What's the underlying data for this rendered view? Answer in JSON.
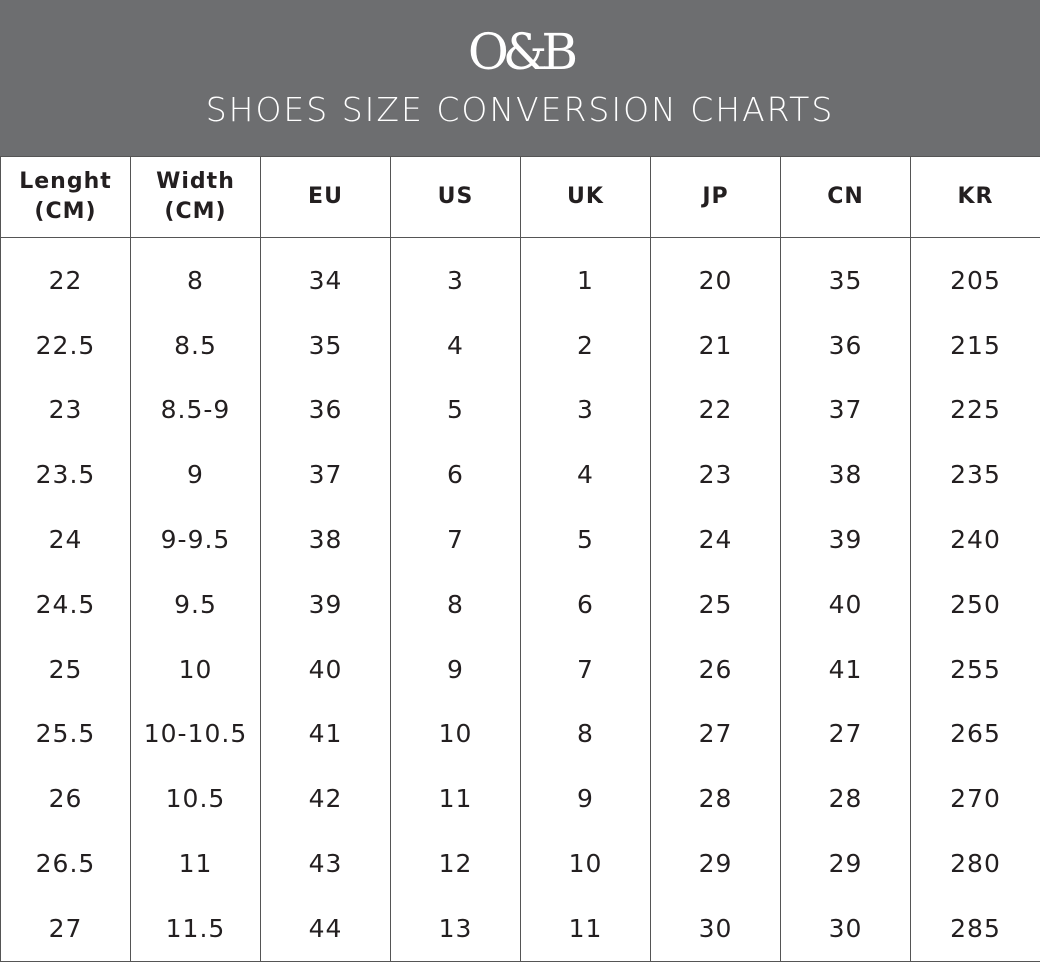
{
  "header": {
    "logo": "O&B",
    "title": "SHOES SIZE CONVERSION CHARTS",
    "background_color": "#6d6e70"
  },
  "table": {
    "columns": [
      {
        "line1": "Lenght",
        "line2": "(CM)"
      },
      {
        "line1": "Width",
        "line2": "(CM)"
      },
      {
        "line1": "EU",
        "line2": ""
      },
      {
        "line1": "US",
        "line2": ""
      },
      {
        "line1": "UK",
        "line2": ""
      },
      {
        "line1": "JP",
        "line2": ""
      },
      {
        "line1": "CN",
        "line2": ""
      },
      {
        "line1": "KR",
        "line2": ""
      }
    ],
    "rows": [
      [
        "22",
        "8",
        "34",
        "3",
        "1",
        "20",
        "35",
        "205"
      ],
      [
        "22.5",
        "8.5",
        "35",
        "4",
        "2",
        "21",
        "36",
        "215"
      ],
      [
        "23",
        "8.5-9",
        "36",
        "5",
        "3",
        "22",
        "37",
        "225"
      ],
      [
        "23.5",
        "9",
        "37",
        "6",
        "4",
        "23",
        "38",
        "235"
      ],
      [
        "24",
        "9-9.5",
        "38",
        "7",
        "5",
        "24",
        "39",
        "240"
      ],
      [
        "24.5",
        "9.5",
        "39",
        "8",
        "6",
        "25",
        "40",
        "250"
      ],
      [
        "25",
        "10",
        "40",
        "9",
        "7",
        "26",
        "41",
        "255"
      ],
      [
        "25.5",
        "10-10.5",
        "41",
        "10",
        "8",
        "27",
        "27",
        "265"
      ],
      [
        "26",
        "10.5",
        "42",
        "11",
        "9",
        "28",
        "28",
        "270"
      ],
      [
        "26.5",
        "11",
        "43",
        "12",
        "10",
        "29",
        "29",
        "280"
      ],
      [
        "27",
        "11.5",
        "44",
        "13",
        "11",
        "30",
        "30",
        "285"
      ]
    ]
  }
}
